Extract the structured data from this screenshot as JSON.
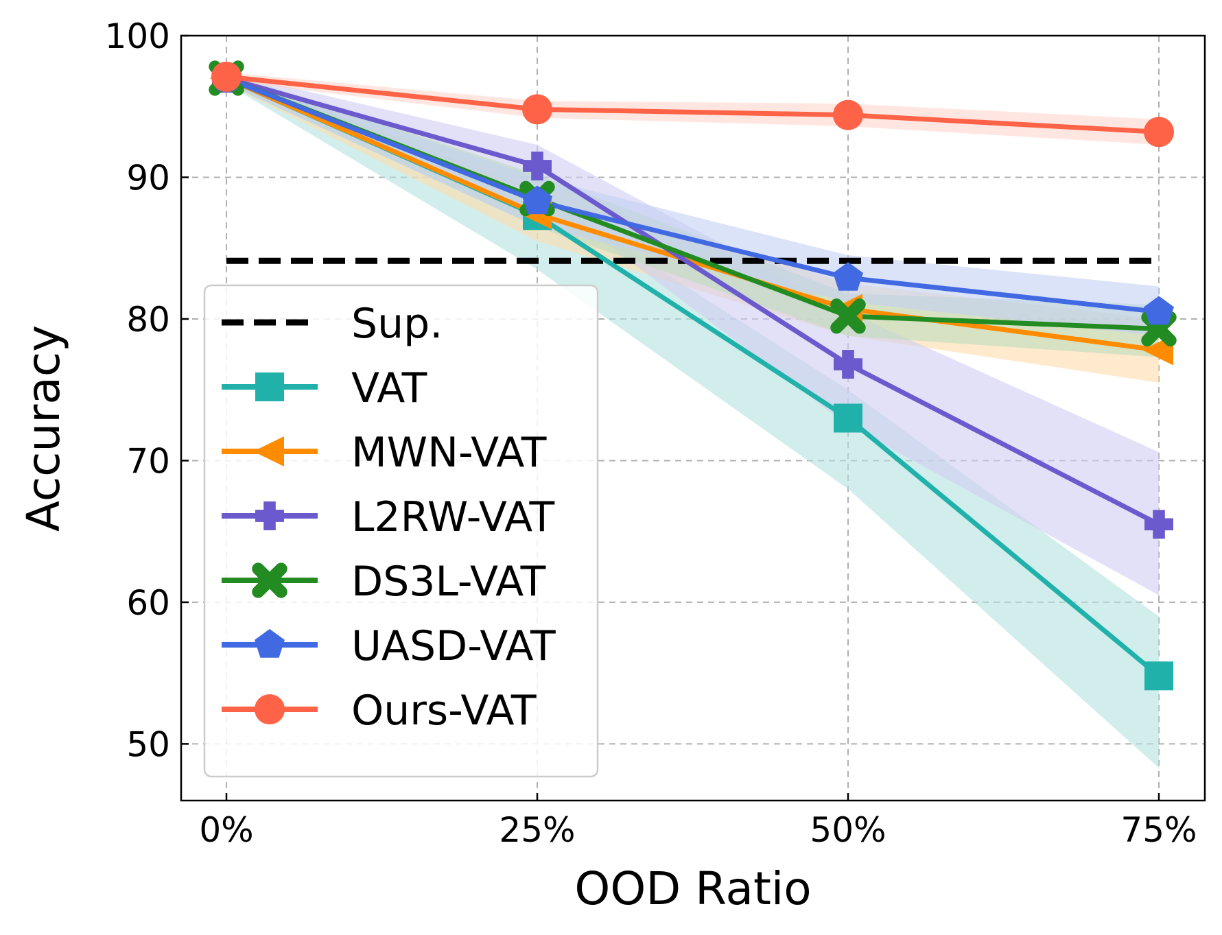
{
  "chart_data": {
    "type": "line",
    "xlabel": "OOD Ratio",
    "ylabel": "Accuracy",
    "categories": [
      "0%",
      "25%",
      "50%",
      "75%"
    ],
    "ylim": [
      46,
      100
    ],
    "yticks": [
      50,
      60,
      70,
      80,
      90,
      100
    ],
    "grid": true,
    "legend_position": "lower-left",
    "baseline": {
      "name": "Sup.",
      "value": 84.1,
      "color": "#000000"
    },
    "series": [
      {
        "name": "VAT",
        "marker": "square",
        "color": "#20B2AA",
        "fill": "#b4e3df",
        "values": [
          97.0,
          87.3,
          73.0,
          54.8
        ],
        "lower": [
          96.6,
          83.5,
          68.0,
          48.3
        ],
        "upper": [
          97.4,
          89.0,
          75.0,
          59.0
        ]
      },
      {
        "name": "MWN-VAT",
        "marker": "triangle-left",
        "color": "#FF8C00",
        "fill": "#ffdcab",
        "values": [
          97.0,
          87.4,
          80.7,
          77.8
        ],
        "lower": [
          96.6,
          85.5,
          78.8,
          75.5
        ],
        "upper": [
          97.4,
          89.5,
          82.5,
          80.0
        ]
      },
      {
        "name": "L2RW-VAT",
        "marker": "plus",
        "color": "#6A5ACD",
        "fill": "#d1cdf1",
        "values": [
          97.0,
          90.8,
          76.8,
          65.5
        ],
        "lower": [
          96.6,
          89.0,
          72.5,
          60.5
        ],
        "upper": [
          97.4,
          92.3,
          80.5,
          70.6
        ]
      },
      {
        "name": "DS3L-VAT",
        "marker": "x",
        "color": "#228B22",
        "fill": "#bcdcbc",
        "values": [
          97.0,
          88.5,
          80.2,
          79.3
        ],
        "lower": [
          96.6,
          86.5,
          78.8,
          77.3
        ],
        "upper": [
          97.4,
          90.2,
          81.8,
          81.0
        ]
      },
      {
        "name": "UASD-VAT",
        "marker": "pentagon",
        "color": "#4169E1",
        "fill": "#c3d0f3",
        "values": [
          97.0,
          88.3,
          82.9,
          80.5
        ],
        "lower": [
          96.6,
          86.5,
          81.2,
          78.8
        ],
        "upper": [
          97.4,
          90.0,
          84.5,
          82.3
        ]
      },
      {
        "name": "Ours-VAT",
        "marker": "circle",
        "color": "#FF6347",
        "fill": "#ffd5cd",
        "values": [
          97.1,
          94.8,
          94.4,
          93.2
        ],
        "lower": [
          96.8,
          94.2,
          93.6,
          92.3
        ],
        "upper": [
          97.4,
          95.4,
          95.2,
          94.1
        ]
      }
    ]
  }
}
